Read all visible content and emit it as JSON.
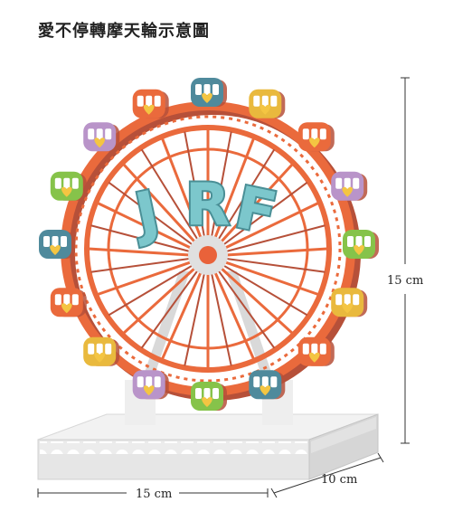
{
  "title": "愛不停轉摩天輪示意圖",
  "wheel_logo": {
    "letters": [
      "J",
      "R",
      "F"
    ]
  },
  "dimensions": {
    "width": "15 cm",
    "depth": "10 cm",
    "height": "15 cm"
  },
  "colors": {
    "frame": "#ea6a3c",
    "frame_shadow": "#b65039",
    "hub": "#e9623a",
    "base": "#e8e8e8",
    "logo_fill": "#7cc7cc",
    "logo_stroke": "#4a8f96"
  },
  "cabins": [
    {
      "color": "#4f8a9c"
    },
    {
      "color": "#e9b93d"
    },
    {
      "color": "#ea6a3c"
    },
    {
      "color": "#b994c9"
    },
    {
      "color": "#86c34a"
    },
    {
      "color": "#e9b93d"
    },
    {
      "color": "#ea6a3c"
    },
    {
      "color": "#4f8a9c"
    },
    {
      "color": "#86c34a"
    },
    {
      "color": "#b994c9"
    },
    {
      "color": "#e9b93d"
    },
    {
      "color": "#ea6a3c"
    },
    {
      "color": "#4f8a9c"
    },
    {
      "color": "#86c34a"
    },
    {
      "color": "#b994c9"
    },
    {
      "color": "#ea6a3c"
    }
  ]
}
